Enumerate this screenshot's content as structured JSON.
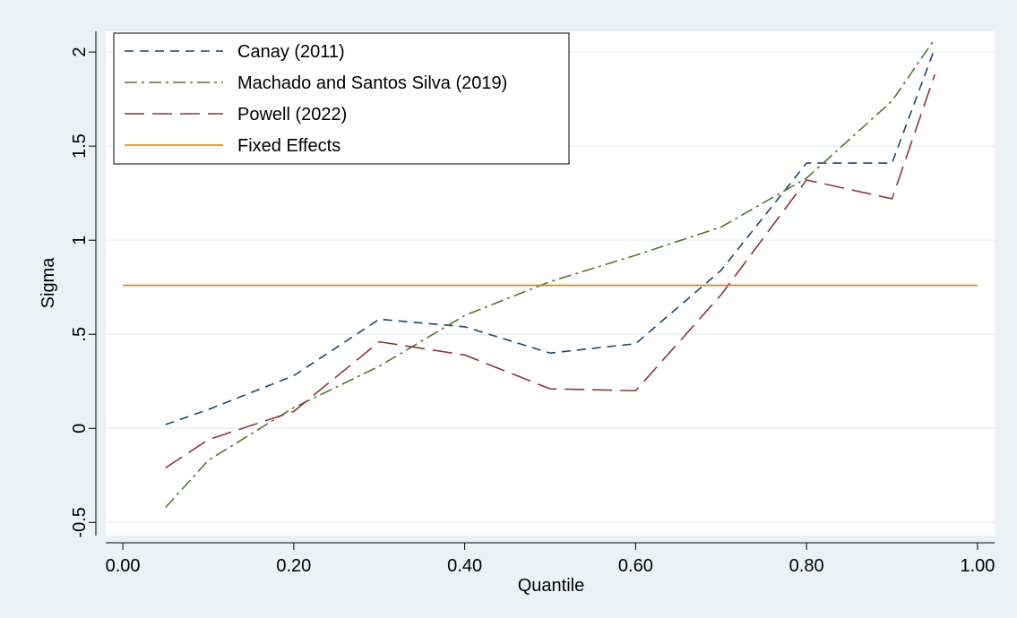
{
  "chart_data": {
    "type": "line",
    "x_label": "Quantile",
    "y_label": "Sigma",
    "series": [
      {
        "name": "Canay (2011)",
        "color": "#1a476f",
        "x": [
          0.05,
          0.1,
          0.2,
          0.3,
          0.4,
          0.5,
          0.6,
          0.7,
          0.8,
          0.9,
          0.95
        ],
        "values": [
          0.02,
          0.1,
          0.28,
          0.58,
          0.54,
          0.4,
          0.45,
          0.84,
          1.41,
          1.41,
          2.02
        ]
      },
      {
        "name": "Machado and Santos Silva (2019)",
        "color": "#55752f",
        "x": [
          0.05,
          0.1,
          0.2,
          0.3,
          0.4,
          0.5,
          0.6,
          0.7,
          0.8,
          0.9,
          0.95
        ],
        "values": [
          -0.42,
          -0.17,
          0.11,
          0.33,
          0.6,
          0.78,
          0.92,
          1.07,
          1.33,
          1.74,
          2.07
        ]
      },
      {
        "name": "Powell (2022)",
        "color": "#90353b",
        "x": [
          0.05,
          0.1,
          0.2,
          0.3,
          0.4,
          0.5,
          0.6,
          0.7,
          0.8,
          0.9,
          0.95
        ],
        "values": [
          -0.21,
          -0.06,
          0.09,
          0.46,
          0.39,
          0.21,
          0.2,
          0.71,
          1.32,
          1.22,
          1.88
        ]
      },
      {
        "name": "Fixed Effects",
        "color": "#e37e00",
        "x": [
          0,
          1
        ],
        "values": [
          0.76,
          0.76
        ]
      }
    ],
    "xlim": [
      -0.02,
      1.02
    ],
    "ylim": [
      -0.57,
      2.11
    ],
    "xticks": [
      {
        "value": 0,
        "label": "0.00"
      },
      {
        "value": 0.2,
        "label": "0.20"
      },
      {
        "value": 0.4,
        "label": "0.40"
      },
      {
        "value": 0.6,
        "label": "0.60"
      },
      {
        "value": 0.8,
        "label": "0.80"
      },
      {
        "value": 1,
        "label": "1.00"
      }
    ],
    "yticks": [
      -0.5,
      0,
      {
        "value": 0.5,
        "label": ".5"
      },
      1,
      1.5,
      2
    ],
    "grid": true,
    "legend": "top-left"
  }
}
